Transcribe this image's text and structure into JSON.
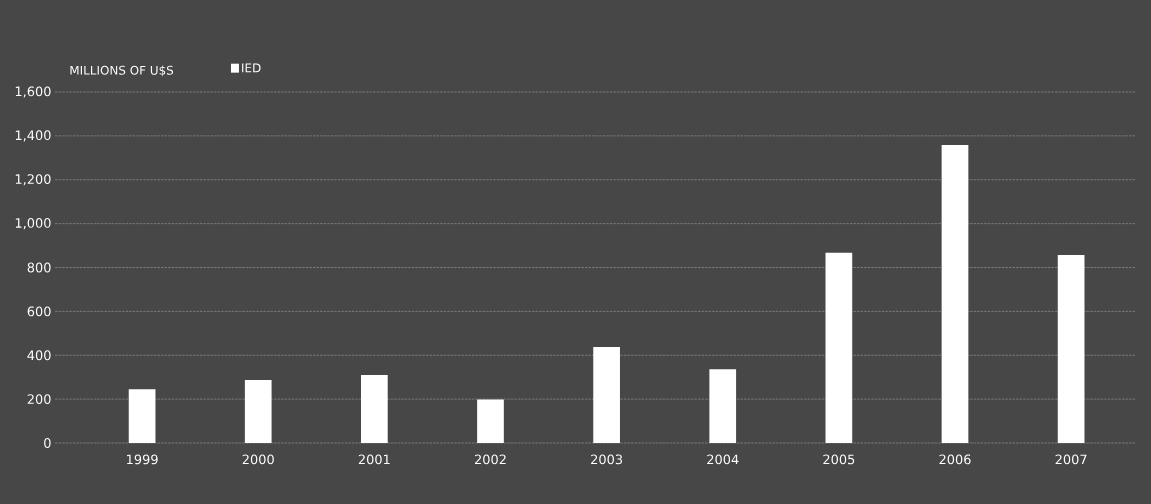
{
  "chart_data": {
    "type": "bar",
    "ylabel": "MILLIONS OF U$S",
    "categories": [
      "1999",
      "2000",
      "2001",
      "2002",
      "2003",
      "2004",
      "2005",
      "2006",
      "2007"
    ],
    "series": [
      {
        "name": "IED",
        "color": "#ffffff",
        "values": [
          245,
          287,
          310,
          198,
          438,
          336,
          867,
          1358,
          857
        ]
      }
    ],
    "ylim": [
      0,
      1600
    ],
    "yticks": [
      0,
      {
        "value": 200,
        "label": "200"
      },
      {
        "value": 400,
        "label": "400"
      },
      {
        "value": 600,
        "label": "600"
      },
      {
        "value": 800,
        "label": "800"
      },
      {
        "value": 1000,
        "label": "1,000"
      },
      {
        "value": 1200,
        "label": "1,200"
      },
      {
        "value": 1400,
        "label": "1,400"
      },
      {
        "value": 1600,
        "label": "1,600"
      }
    ],
    "grid": "y",
    "legend": "top left"
  }
}
